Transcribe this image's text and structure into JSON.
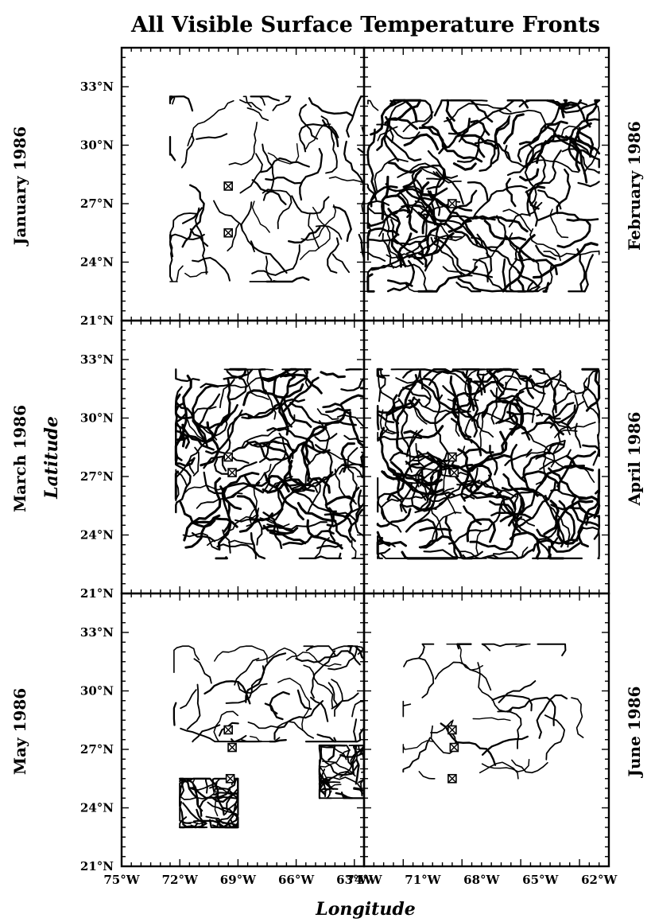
{
  "title": "All Visible Surface Temperature Fronts",
  "xlabel": "Longitude",
  "ylabel": "Latitude",
  "lat_ticks": [
    "21°N",
    "24°N",
    "27°N",
    "30°N",
    "33°N"
  ],
  "lat_tick_values": [
    21,
    24,
    27,
    30,
    33
  ],
  "left_lon_ticks": [
    "75°W",
    "72°W",
    "69°W",
    "66°W",
    "63°W"
  ],
  "left_lon_values": [
    -75,
    -72,
    -69,
    -66,
    -63
  ],
  "right_lon_ticks": [
    "74°W",
    "71°W",
    "68°W",
    "65°W",
    "62°W"
  ],
  "right_lon_values": [
    -74,
    -71,
    -68,
    -65,
    -62
  ],
  "panels": [
    {
      "id": "jan",
      "month": "January 1986",
      "side": "left",
      "row": 0,
      "moorings": [
        [
          -69.5,
          27.9
        ],
        [
          -69.5,
          25.5
        ]
      ]
    },
    {
      "id": "feb",
      "month": "February 1986",
      "side": "right",
      "row": 0,
      "moorings": [
        [
          -69.5,
          27.0
        ]
      ]
    },
    {
      "id": "mar",
      "month": "March 1986",
      "side": "left",
      "row": 1,
      "moorings": [
        [
          -69.5,
          28.0
        ],
        [
          -69.3,
          27.2
        ]
      ]
    },
    {
      "id": "apr",
      "month": "April 1986",
      "side": "right",
      "row": 1,
      "moorings": [
        [
          -69.5,
          28.0
        ],
        [
          -69.4,
          27.2
        ]
      ]
    },
    {
      "id": "may",
      "month": "May 1986",
      "side": "left",
      "row": 2,
      "moorings": [
        [
          -69.5,
          28.0
        ],
        [
          -69.3,
          27.1
        ],
        [
          -69.4,
          25.5
        ]
      ]
    },
    {
      "id": "jun",
      "month": "June 1986",
      "side": "right",
      "row": 2,
      "moorings": [
        [
          -69.5,
          28.0
        ],
        [
          -69.4,
          27.1
        ],
        [
          -69.5,
          25.5
        ]
      ]
    }
  ]
}
